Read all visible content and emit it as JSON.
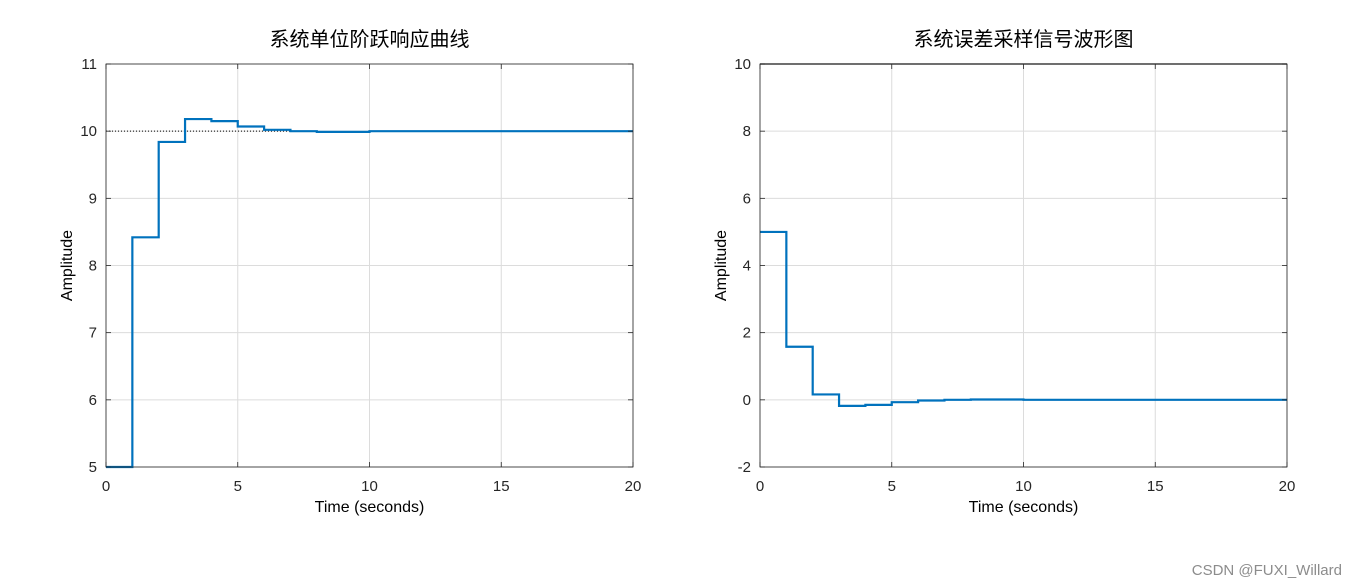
{
  "colors": {
    "series": "#0072BD",
    "grid": "#DCDCDC",
    "axis": "#262626",
    "reference": "#000000"
  },
  "watermark": "CSDN @FUXI_Willard",
  "chart_data": [
    {
      "type": "line",
      "title": "系统单位阶跃响应曲线",
      "xlabel": "Time (seconds)",
      "ylabel": "Amplitude",
      "xlim": [
        0,
        20
      ],
      "ylim": [
        5,
        11
      ],
      "xticks": [
        0,
        5,
        10,
        15,
        20
      ],
      "yticks": [
        5,
        6,
        7,
        8,
        9,
        10,
        11
      ],
      "grid": true,
      "step": true,
      "reference_line": {
        "y": 10,
        "style": "dotted",
        "x": [
          0,
          7
        ]
      },
      "series": [
        {
          "x": [
            0,
            1,
            2,
            3,
            4,
            5,
            6,
            7,
            8,
            9,
            10,
            11,
            12,
            13,
            14,
            15,
            16,
            17,
            18,
            19,
            20
          ],
          "values": [
            5.0,
            8.42,
            9.84,
            10.18,
            10.15,
            10.07,
            10.02,
            10.0,
            9.99,
            9.99,
            10.0,
            10.0,
            10.0,
            10.0,
            10.0,
            10.0,
            10.0,
            10.0,
            10.0,
            10.0,
            10.0
          ]
        }
      ]
    },
    {
      "type": "line",
      "title": "系统误差采样信号波形图",
      "xlabel": "Time (seconds)",
      "ylabel": "Amplitude",
      "xlim": [
        0,
        20
      ],
      "ylim": [
        -2,
        10
      ],
      "xticks": [
        0,
        5,
        10,
        15,
        20
      ],
      "yticks": [
        -2,
        0,
        2,
        4,
        6,
        8,
        10
      ],
      "grid": true,
      "step": true,
      "reference_line": {
        "y": 10,
        "style": "solid",
        "x": [
          0,
          20
        ]
      },
      "series": [
        {
          "x": [
            0,
            1,
            2,
            3,
            4,
            5,
            6,
            7,
            8,
            9,
            10,
            11,
            12,
            13,
            14,
            15,
            16,
            17,
            18,
            19,
            20
          ],
          "values": [
            5.0,
            1.58,
            0.16,
            -0.18,
            -0.15,
            -0.07,
            -0.02,
            0.0,
            0.01,
            0.01,
            0.0,
            0.0,
            0.0,
            0.0,
            0.0,
            0.0,
            0.0,
            0.0,
            0.0,
            0.0,
            0.0
          ]
        }
      ]
    }
  ]
}
